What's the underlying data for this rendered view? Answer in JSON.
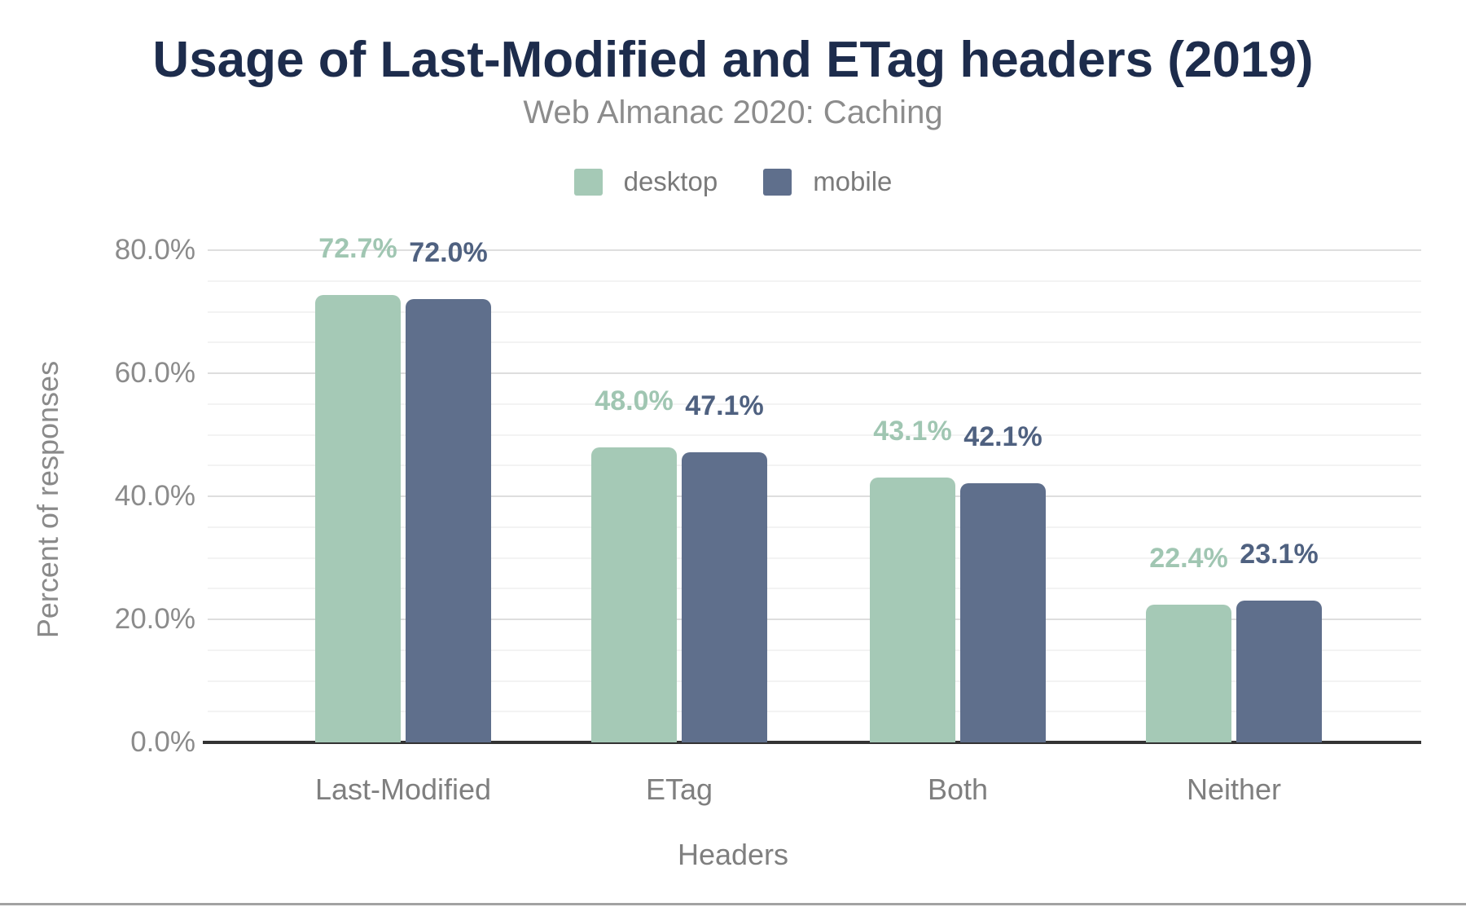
{
  "page": {
    "background": "#ffffff"
  },
  "chart_data": {
    "type": "bar",
    "title": "Usage of Last-Modified and ETag headers (2019)",
    "subtitle": "Web Almanac 2020: Caching",
    "xlabel": "Headers",
    "ylabel": "Percent of responses",
    "categories": [
      "Last-Modified",
      "ETag",
      "Both",
      "Neither"
    ],
    "series": [
      {
        "name": "desktop",
        "values": [
          72.7,
          48.0,
          43.1,
          22.4
        ],
        "labels": [
          "72.7%",
          "48.0%",
          "43.1%",
          "22.4%"
        ],
        "color": "#a5c9b6",
        "label_color": "#a0c6b2"
      },
      {
        "name": "mobile",
        "values": [
          72.0,
          47.1,
          42.1,
          23.1
        ],
        "labels": [
          "72.0%",
          "47.1%",
          "42.1%",
          "23.1%"
        ],
        "color": "#5f6f8c",
        "label_color": "#4f6180"
      }
    ],
    "ylim": [
      0,
      80
    ],
    "ytick_labels": [
      "0.0%",
      "20.0%",
      "40.0%",
      "60.0%",
      "80.0%"
    ],
    "ytick_values": [
      0,
      20,
      40,
      60,
      80
    ],
    "minor_grid_step": 5,
    "grid": true,
    "legend_position": "top"
  },
  "colors": {
    "title": "#1d2c4c",
    "subtitle": "#8c8c8c",
    "axis_line": "#333333",
    "major_grid": "#dedede",
    "minor_grid": "#f3f3f3",
    "tick_label": "#8b8b8b",
    "category_label": "#7f7f7f",
    "bottom_rule": "#a2a2a2"
  }
}
